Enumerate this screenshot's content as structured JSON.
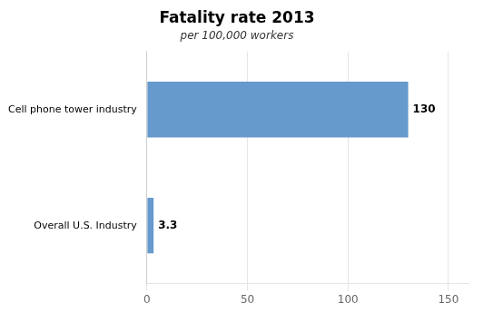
{
  "chart_data": {
    "type": "bar",
    "orientation": "horizontal",
    "title": "Fatality rate 2013",
    "subtitle": "per 100,000 workers",
    "categories": [
      "Cell phone tower industry",
      "Overall U.S. Industry"
    ],
    "values": [
      130,
      3.3
    ],
    "color": "#6699CC",
    "xlim": [
      0,
      160
    ],
    "xticks": [
      0,
      50,
      100,
      150
    ],
    "grid": true,
    "data_labels": true
  }
}
